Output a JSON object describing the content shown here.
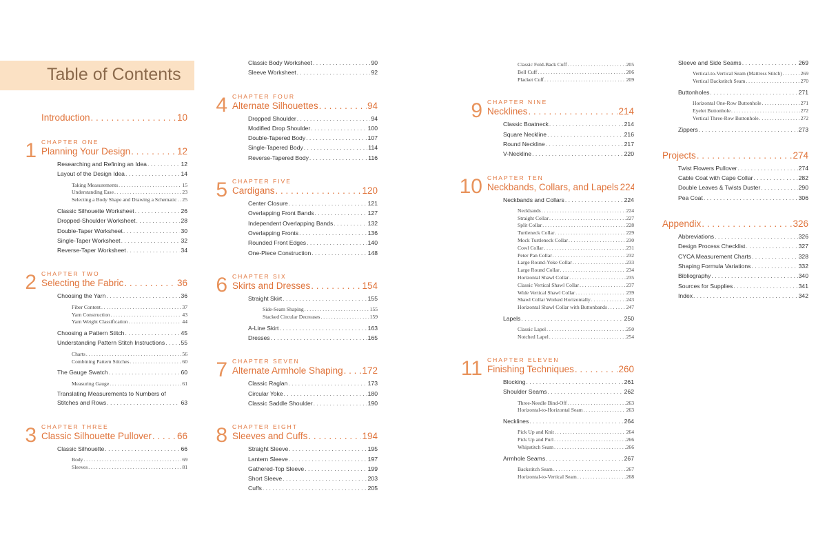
{
  "title": "Table of Contents",
  "colors": {
    "accent": "#e0733a",
    "band": "#fbe1c4",
    "title_text": "#8b6a4c"
  },
  "columns": [
    [
      {
        "type": "main",
        "title": "Introduction",
        "page": "10",
        "first": true
      },
      {
        "type": "chapter",
        "num": "1",
        "label": "CHAPTER ONE",
        "title": "Planning Your Design",
        "page": "12"
      },
      {
        "type": "l2",
        "title": "Researching and Refining an Idea",
        "page": "12"
      },
      {
        "type": "l2",
        "title": "Layout of the Design Idea",
        "page": "14"
      },
      {
        "type": "l3",
        "title": "Taking Measurements",
        "page": "15"
      },
      {
        "type": "l3",
        "title": "Understanding Ease",
        "page": "23"
      },
      {
        "type": "l3",
        "title": "Selecting a Body Shape and Drawing a Schematic",
        "page": "25"
      },
      {
        "type": "l2",
        "title": "Classic Silhouette Worksheet",
        "page": "26"
      },
      {
        "type": "l2",
        "title": "Dropped-Shoulder Worksheet",
        "page": "28"
      },
      {
        "type": "l2",
        "title": "Double-Taper Worksheet",
        "page": "30"
      },
      {
        "type": "l2",
        "title": "Single-Taper Worksheet",
        "page": "32"
      },
      {
        "type": "l2",
        "title": "Reverse-Taper Worksheet",
        "page": "34"
      },
      {
        "type": "chapter",
        "num": "2",
        "label": "CHAPTER TWO",
        "title": "Selecting the Fabric",
        "page": "36"
      },
      {
        "type": "l2",
        "title": "Choosing the Yarn",
        "page": "36"
      },
      {
        "type": "l3",
        "title": "Fiber Content",
        "page": "37"
      },
      {
        "type": "l3",
        "title": "Yarn Construction",
        "page": "43"
      },
      {
        "type": "l3",
        "title": "Yarn Weight Classification",
        "page": "44"
      },
      {
        "type": "l2",
        "title": "Choosing a Pattern Stitch",
        "page": "45"
      },
      {
        "type": "l2",
        "title": "Understanding Pattern Stitch Instructions",
        "page": "55"
      },
      {
        "type": "l3",
        "title": "Charts",
        "page": "56"
      },
      {
        "type": "l3",
        "title": "Combining Pattern Stitches",
        "page": "60"
      },
      {
        "type": "l2",
        "title": "The Gauge Swatch",
        "page": "60"
      },
      {
        "type": "l3",
        "title": "Measuring Gauge",
        "page": "61"
      },
      {
        "type": "l2wrap",
        "line1": "Translating Measurements to Numbers of",
        "title": "Stitches and Rows",
        "page": "63"
      },
      {
        "type": "chapter",
        "num": "3",
        "label": "CHAPTER THREE",
        "title": "Classic Silhouette Pullover",
        "page": "66"
      },
      {
        "type": "l2",
        "title": "Classic Silhouette",
        "page": "66"
      },
      {
        "type": "l3",
        "title": "Body",
        "page": "69"
      },
      {
        "type": "l3",
        "title": "Sleeves",
        "page": "81"
      }
    ],
    [
      {
        "type": "l2",
        "title": "Classic Body Worksheet",
        "page": "90"
      },
      {
        "type": "l2",
        "title": "Sleeve Worksheet",
        "page": "92"
      },
      {
        "type": "chapter",
        "num": "4",
        "label": "CHAPTER FOUR",
        "title": "Alternate Silhouettes",
        "page": "94"
      },
      {
        "type": "l2",
        "title": "Dropped Shoulder",
        "page": "94"
      },
      {
        "type": "l2",
        "title": "Modified Drop Shoulder",
        "page": "100"
      },
      {
        "type": "l2",
        "title": "Double-Tapered Body",
        "page": "107"
      },
      {
        "type": "l2",
        "title": "Single-Tapered Body",
        "page": "114"
      },
      {
        "type": "l2",
        "title": "Reverse-Tapered Body",
        "page": "116"
      },
      {
        "type": "chapter",
        "num": "5",
        "label": "CHAPTER FIVE",
        "title": "Cardigans",
        "page": "120"
      },
      {
        "type": "l2",
        "title": "Center Closure",
        "page": "121"
      },
      {
        "type": "l2",
        "title": "Overlapping Front Bands",
        "page": "127"
      },
      {
        "type": "l2",
        "title": "Independent Overlapping Bands",
        "page": "132"
      },
      {
        "type": "l2",
        "title": "Overlapping Fronts",
        "page": "136"
      },
      {
        "type": "l2",
        "title": "Rounded Front Edges",
        "page": "140"
      },
      {
        "type": "l2",
        "title": "One-Piece Construction",
        "page": "148"
      },
      {
        "type": "chapter",
        "num": "6",
        "label": "CHAPTER SIX",
        "title": "Skirts and Dresses",
        "page": "154"
      },
      {
        "type": "l2",
        "title": "Straight Skirt",
        "page": "155"
      },
      {
        "type": "l3",
        "title": "Side-Seam Shaping",
        "page": "155"
      },
      {
        "type": "l3",
        "title": "Stacked Circular Decreases",
        "page": "159"
      },
      {
        "type": "l2",
        "title": "A-Line Skirt",
        "page": "163"
      },
      {
        "type": "l2",
        "title": "Dresses",
        "page": "165"
      },
      {
        "type": "chapter",
        "num": "7",
        "label": "CHAPTER SEVEN",
        "title": "Alternate Armhole Shaping",
        "page": "172"
      },
      {
        "type": "l2",
        "title": "Classic Raglan",
        "page": "173"
      },
      {
        "type": "l2",
        "title": "Circular Yoke",
        "page": "180"
      },
      {
        "type": "l2",
        "title": "Classic Saddle Shoulder",
        "page": "190"
      },
      {
        "type": "chapter",
        "num": "8",
        "label": "CHAPTER EIGHT",
        "title": "Sleeves and Cuffs",
        "page": "194"
      },
      {
        "type": "l2",
        "title": "Straight Sleeve",
        "page": "195"
      },
      {
        "type": "l2",
        "title": "Lantern Sleeve",
        "page": "197"
      },
      {
        "type": "l2",
        "title": "Gathered-Top Sleeve",
        "page": "199"
      },
      {
        "type": "l2",
        "title": "Short Sleeve",
        "page": "203"
      },
      {
        "type": "l2",
        "title": "Cuffs",
        "page": "205"
      }
    ],
    [
      {
        "type": "l3",
        "title": "Classic Fold-Back Cuff",
        "page": "205"
      },
      {
        "type": "l3",
        "title": "Bell Cuff",
        "page": "206"
      },
      {
        "type": "l3",
        "title": "Placket Cuff",
        "page": "209"
      },
      {
        "type": "chapter",
        "num": "9",
        "label": "CHAPTER NINE",
        "title": "Necklines",
        "page": "214"
      },
      {
        "type": "l2",
        "title": "Classic Boatneck",
        "page": "214"
      },
      {
        "type": "l2",
        "title": "Square Neckline",
        "page": "216"
      },
      {
        "type": "l2",
        "title": "Round Neckline",
        "page": "217"
      },
      {
        "type": "l2",
        "title": "V-Neckline",
        "page": "220"
      },
      {
        "type": "chapter",
        "num": "10",
        "label": "CHAPTER TEN",
        "title": "Neckbands, Collars, and Lapels",
        "page": "224"
      },
      {
        "type": "l2",
        "title": "Neckbands and Collars",
        "page": "224"
      },
      {
        "type": "l3",
        "title": "Neckbands",
        "page": "224"
      },
      {
        "type": "l3",
        "title": "Straight Collar",
        "page": "227"
      },
      {
        "type": "l3",
        "title": "Split Collar",
        "page": "228"
      },
      {
        "type": "l3",
        "title": "Turtleneck Collar",
        "page": "229"
      },
      {
        "type": "l3",
        "title": "Mock Turtleneck Collar",
        "page": "230"
      },
      {
        "type": "l3",
        "title": "Cowl Collar",
        "page": "231"
      },
      {
        "type": "l3",
        "title": "Peter Pan Collar",
        "page": "232"
      },
      {
        "type": "l3",
        "title": "Large Round-Yoke Collar",
        "page": "233"
      },
      {
        "type": "l3",
        "title": "Large Round Collar",
        "page": "234"
      },
      {
        "type": "l3",
        "title": "Horizontal Shawl Collar",
        "page": "235"
      },
      {
        "type": "l3",
        "title": "Classic Vertical Shawl Collar",
        "page": "237"
      },
      {
        "type": "l3",
        "title": "Wide Vertical Shawl Collar",
        "page": "239"
      },
      {
        "type": "l3",
        "title": "Shawl Collar Worked Horizontally",
        "page": "243"
      },
      {
        "type": "l3",
        "title": "Horizontal Shawl Collar with Buttonbands",
        "page": "247"
      },
      {
        "type": "l2",
        "title": "Lapels",
        "page": "250"
      },
      {
        "type": "l3",
        "title": "Classic Lapel",
        "page": "250"
      },
      {
        "type": "l3",
        "title": "Notched Lapel",
        "page": "254"
      },
      {
        "type": "chapter",
        "num": "11",
        "label": "CHAPTER ELEVEN",
        "title": "Finishing Techniques",
        "page": "260"
      },
      {
        "type": "l2",
        "title": "Blocking",
        "page": "261"
      },
      {
        "type": "l2",
        "title": "Shoulder Seams",
        "page": "262"
      },
      {
        "type": "l3",
        "title": "Three-Needle Bind-Off",
        "page": "263"
      },
      {
        "type": "l3",
        "title": "Horizontal-to-Horizontal Seam",
        "page": "263"
      },
      {
        "type": "l2",
        "title": "Necklines",
        "page": "264"
      },
      {
        "type": "l3",
        "title": "Pick Up and Knit",
        "page": "264"
      },
      {
        "type": "l3",
        "title": "Pick Up and Purl",
        "page": "266"
      },
      {
        "type": "l3",
        "title": "Whipstitch Seam",
        "page": "266"
      },
      {
        "type": "l2",
        "title": "Armhole Seams",
        "page": "267"
      },
      {
        "type": "l3",
        "title": "Backstitch Seam",
        "page": "267"
      },
      {
        "type": "l3",
        "title": "Horizontal-to-Vertical Seam",
        "page": "268"
      }
    ],
    [
      {
        "type": "l2",
        "title": "Sleeve and Side Seams",
        "page": "269"
      },
      {
        "type": "l3",
        "title": "Vertical-to-Vertical Seam (Mattress Stitch)",
        "page": "269"
      },
      {
        "type": "l3",
        "title": "Vertical Backstitch Seam",
        "page": "270"
      },
      {
        "type": "l2",
        "title": "Buttonholes",
        "page": "271"
      },
      {
        "type": "l3",
        "title": "Horizontal One-Row Buttonhole",
        "page": "271"
      },
      {
        "type": "l3",
        "title": "Eyelet Buttonhole",
        "page": "272"
      },
      {
        "type": "l3",
        "title": "Vertical Three-Row Buttonhole",
        "page": "272"
      },
      {
        "type": "l2",
        "title": "Zippers",
        "page": "273"
      },
      {
        "type": "main",
        "title": "Projects",
        "page": "274"
      },
      {
        "type": "l2",
        "title": "Twist Flowers Pullover",
        "page": "274"
      },
      {
        "type": "l2",
        "title": "Cable Coat with Cape Collar",
        "page": "282"
      },
      {
        "type": "l2",
        "title": "Double Leaves & Twists Duster",
        "page": "290"
      },
      {
        "type": "l2",
        "title": "Pea Coat",
        "page": "306"
      },
      {
        "type": "main",
        "title": "Appendix",
        "page": "326"
      },
      {
        "type": "l2",
        "title": "Abbreviations",
        "page": "326"
      },
      {
        "type": "l2",
        "title": "Design Process Checklist",
        "page": "327"
      },
      {
        "type": "l2",
        "title": "CYCA Measurement Charts",
        "page": "328"
      },
      {
        "type": "l2",
        "title": "Shaping Formula Variations",
        "page": "332"
      },
      {
        "type": "l2",
        "title": "Bibliography",
        "page": "340"
      },
      {
        "type": "l2",
        "title": "Sources for Supplies",
        "page": "341"
      },
      {
        "type": "l2",
        "title": "Index",
        "page": "342"
      }
    ]
  ]
}
